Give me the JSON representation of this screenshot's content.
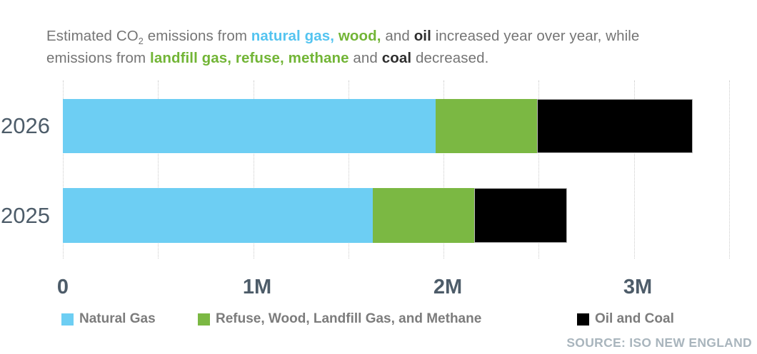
{
  "palette": {
    "natural_gas": "#6DCEF3",
    "refuse_wood_landfill_methane": "#7BB843",
    "oil_coal": "#000000",
    "title_blue": "#54C4F0",
    "title_green": "#72B536",
    "title_dark": "#2E2E2E",
    "text_gray": "#757575",
    "axis_slate": "#4D5C69",
    "legend_gray": "#7C7C7C",
    "source_gray": "#A9B5BD",
    "gridline": "#CBCBCB"
  },
  "title": {
    "segments": [
      {
        "text": "Estimated CO",
        "style": "gray"
      },
      {
        "text": "2",
        "style": "gray",
        "sub": true
      },
      {
        "text": " emissions from ",
        "style": "gray"
      },
      {
        "text": "natural gas, ",
        "style": "blue"
      },
      {
        "text": "wood,",
        "style": "green"
      },
      {
        "text": " and ",
        "style": "gray"
      },
      {
        "text": "oil",
        "style": "dark"
      },
      {
        "text": " increased year over year, while",
        "style": "gray"
      },
      {
        "break": true
      },
      {
        "text": "emissions from ",
        "style": "gray"
      },
      {
        "text": "landfill gas, refuse, methane",
        "style": "green"
      },
      {
        "text": " and ",
        "style": "gray"
      },
      {
        "text": "coal",
        "style": "dark"
      },
      {
        "text": " decreased.",
        "style": "gray"
      }
    ]
  },
  "chart_data": {
    "type": "bar",
    "orientation": "horizontal",
    "stacked": true,
    "value_unit": "millions (M)",
    "categories": [
      "2026",
      "2025"
    ],
    "series": [
      {
        "name": "Natural Gas",
        "color": "#6DCEF3",
        "values": [
          1.96,
          1.63
        ]
      },
      {
        "name": "Refuse, Wood, Landfill Gas, and Methane",
        "color": "#7BB843",
        "values": [
          0.53,
          0.53
        ]
      },
      {
        "name": "Oil and Coal",
        "color": "#000000",
        "outlined": true,
        "values": [
          0.82,
          0.49
        ]
      }
    ],
    "totals": [
      3.31,
      2.65
    ],
    "xlim": [
      0,
      3.65
    ],
    "gridlines_every": 0.5,
    "gridlines_max": 3.5,
    "grid": true,
    "x_ticks": [
      {
        "value": 0,
        "label": "0"
      },
      {
        "value": 1,
        "label": "1M"
      },
      {
        "value": 2,
        "label": "2M"
      },
      {
        "value": 3,
        "label": "3M"
      }
    ],
    "legend_position": "bottom"
  },
  "legend": {
    "items": [
      {
        "label": "Natural Gas",
        "color": "#6DCEF3"
      },
      {
        "label": "Refuse, Wood, Landfill Gas, and Methane",
        "color": "#7BB843"
      },
      {
        "label": "Oil and Coal",
        "color": "#000000"
      }
    ]
  },
  "source": {
    "text": "SOURCE: ISO NEW ENGLAND"
  }
}
